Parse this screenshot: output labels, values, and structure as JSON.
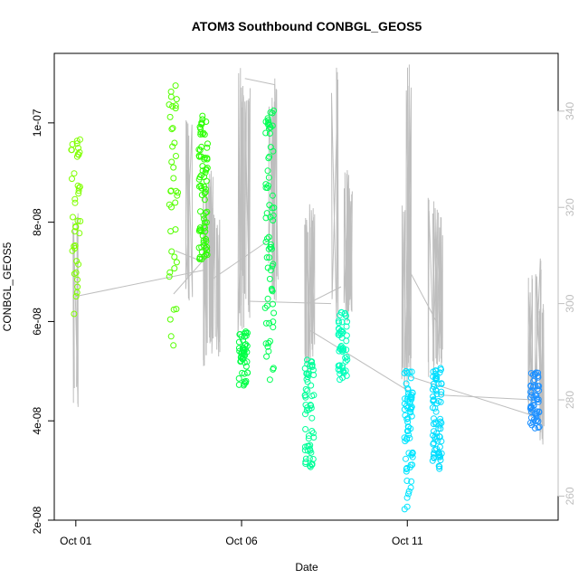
{
  "chart_data": {
    "type": "scatter",
    "title": "ATOM3 Southbound CONBGL_GEOS5",
    "xlabel": "Date",
    "ylabel": "CONBGL_GEOS5",
    "x_ticks": [
      "Oct 01",
      "Oct 06",
      "Oct 11"
    ],
    "y_ticks": [
      "2e-08",
      "4e-08",
      "6e-08",
      "8e-08",
      "1e-07"
    ],
    "y_ticks_right": [
      "260",
      "280",
      "300",
      "320",
      "340"
    ],
    "xlim_days": [
      30.35,
      45.55
    ],
    "ylim": [
      2e-08,
      1.14e-07
    ],
    "ylim_right": [
      255,
      352
    ],
    "grid": false,
    "legend": "none",
    "point_series": {
      "name": "CONBGL_GEOS5",
      "marker": "open-circle",
      "clusters": [
        {
          "date": "Oct 01",
          "day": 31.0,
          "n": 40,
          "y_min": 6.1e-08,
          "y_max": 9.7e-08,
          "color": "#80ff00"
        },
        {
          "date": "Oct 03",
          "day": 33.95,
          "n": 38,
          "y_min": 5.5e-08,
          "y_max": 1.09e-07,
          "color": "#55ff00"
        },
        {
          "date": "Oct 04",
          "day": 34.85,
          "n": 80,
          "y_min": 7.2e-08,
          "y_max": 1.02e-07,
          "color": "#2bff00"
        },
        {
          "date": "Oct 06",
          "day": 36.05,
          "n": 50,
          "y_min": 4.7e-08,
          "y_max": 5.8e-08,
          "color": "#00ff44"
        },
        {
          "date": "Oct 06",
          "day": 36.85,
          "n": 70,
          "y_min": 4.8e-08,
          "y_max": 1.04e-07,
          "color": "#00ff55"
        },
        {
          "date": "Oct 08",
          "day": 38.05,
          "n": 60,
          "y_min": 3e-08,
          "y_max": 5.3e-08,
          "color": "#00ff99"
        },
        {
          "date": "Oct 09",
          "day": 39.05,
          "n": 55,
          "y_min": 4.8e-08,
          "y_max": 6.2e-08,
          "color": "#00ffbb"
        },
        {
          "date": "Oct 11",
          "day": 41.05,
          "n": 70,
          "y_min": 2.2e-08,
          "y_max": 5e-08,
          "color": "#00e5ff"
        },
        {
          "date": "Oct 12",
          "day": 41.9,
          "n": 75,
          "y_min": 2.9e-08,
          "y_max": 5.1e-08,
          "color": "#00ddff"
        },
        {
          "date": "Oct 15",
          "day": 44.85,
          "n": 60,
          "y_min": 3.8e-08,
          "y_max": 5e-08,
          "color": "#1e90ff"
        }
      ]
    },
    "line_series": {
      "name": "right axis trace",
      "color": "#bebebe",
      "vertical_spikes": [
        {
          "day": 31.0,
          "low": 277,
          "high": 320
        },
        {
          "day": 34.4,
          "low": 300,
          "high": 340
        },
        {
          "day": 34.9,
          "low": 287,
          "high": 325
        },
        {
          "day": 35.05,
          "low": 290,
          "high": 330
        },
        {
          "day": 35.15,
          "low": 288,
          "high": 322
        },
        {
          "day": 35.3,
          "low": 289,
          "high": 318
        },
        {
          "day": 36.0,
          "low": 292,
          "high": 349
        },
        {
          "day": 36.1,
          "low": 300,
          "high": 347
        },
        {
          "day": 36.2,
          "low": 295,
          "high": 345
        },
        {
          "day": 36.9,
          "low": 302,
          "high": 347
        },
        {
          "day": 37.0,
          "low": 300,
          "high": 346
        },
        {
          "day": 38.0,
          "low": 285,
          "high": 318
        },
        {
          "day": 38.1,
          "low": 288,
          "high": 322
        },
        {
          "day": 38.8,
          "low": 296,
          "high": 352
        },
        {
          "day": 39.2,
          "low": 296,
          "high": 328
        },
        {
          "day": 39.3,
          "low": 298,
          "high": 325
        },
        {
          "day": 40.95,
          "low": 282,
          "high": 322
        },
        {
          "day": 41.05,
          "low": 280,
          "high": 350
        },
        {
          "day": 41.7,
          "low": 283,
          "high": 322
        },
        {
          "day": 41.85,
          "low": 286,
          "high": 320
        },
        {
          "day": 42.0,
          "low": 287,
          "high": 318
        },
        {
          "day": 44.75,
          "low": 275,
          "high": 306
        },
        {
          "day": 44.95,
          "low": 278,
          "high": 310
        },
        {
          "day": 45.05,
          "low": 270,
          "high": 300
        }
      ],
      "connectors": [
        [
          31.0,
          301.5,
          34.9,
          307.0
        ],
        [
          33.95,
          302.0,
          35.1,
          311.0
        ],
        [
          34.0,
          311.0,
          34.9,
          308.5
        ],
        [
          35.1,
          305.0,
          37.0,
          314.0
        ],
        [
          36.1,
          346.8,
          37.0,
          345.5
        ],
        [
          37.0,
          345.5,
          37.1,
          305.0
        ],
        [
          36.2,
          300.5,
          38.7,
          300.0
        ],
        [
          38.0,
          300.0,
          39.0,
          303.5
        ],
        [
          38.05,
          294.5,
          41.0,
          282.0
        ],
        [
          41.05,
          307.0,
          41.9,
          296.0
        ],
        [
          41.0,
          285.0,
          44.9,
          276.5
        ],
        [
          42.0,
          281.0,
          44.8,
          280.0
        ]
      ]
    }
  }
}
